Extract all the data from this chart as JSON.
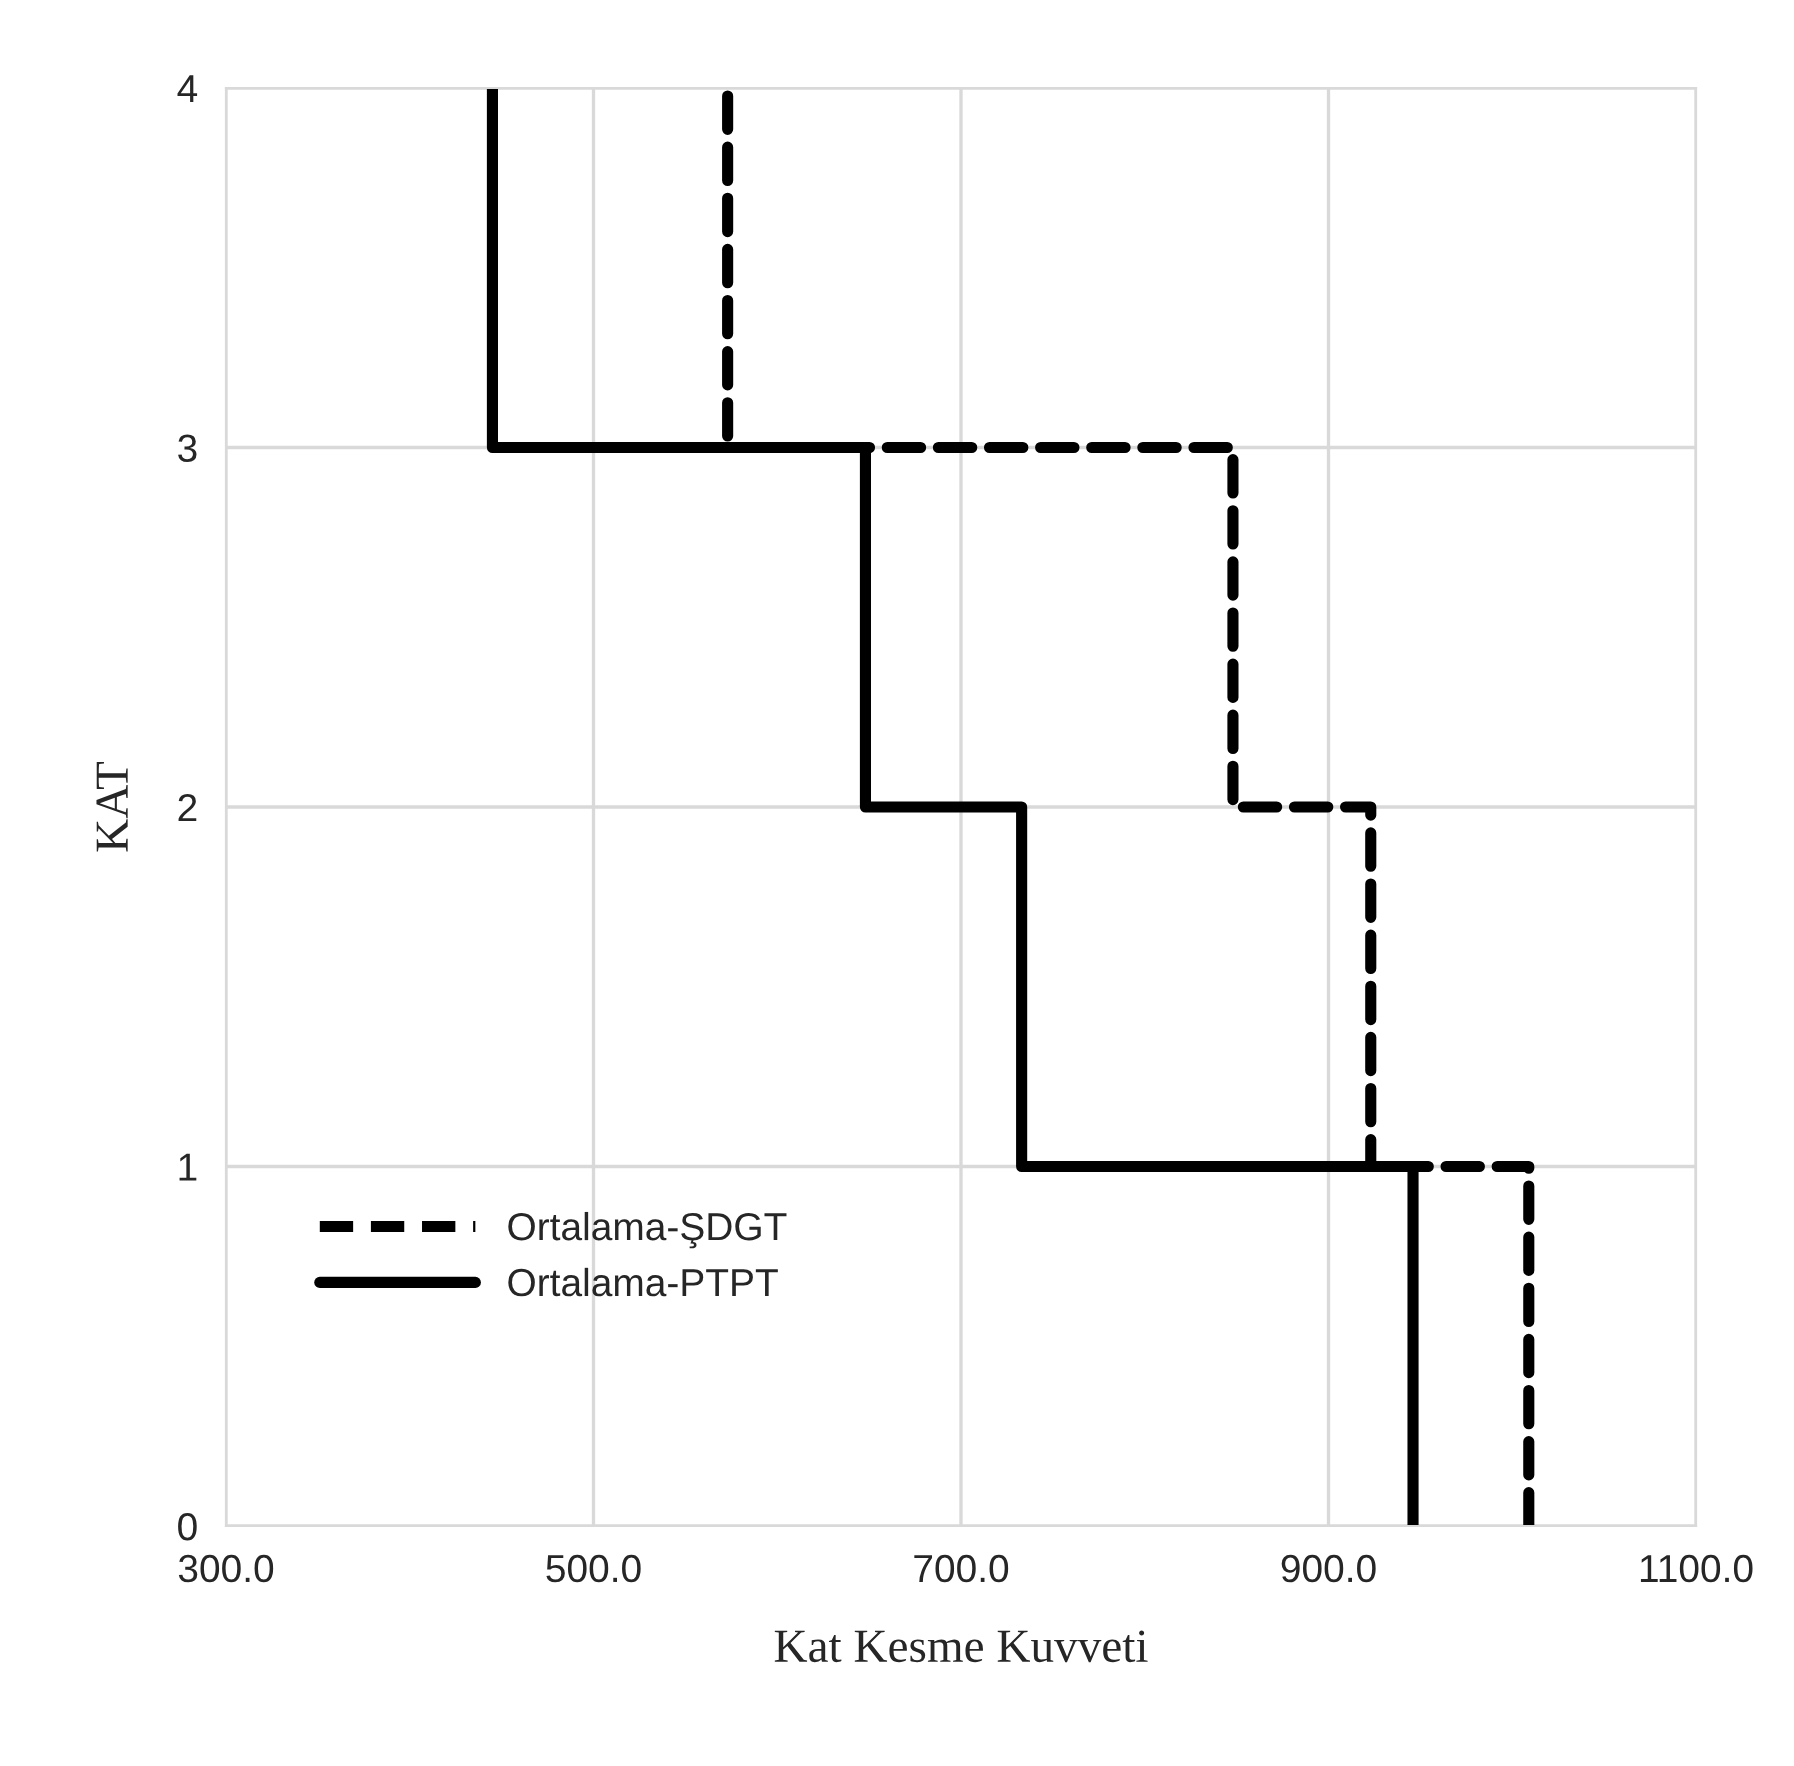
{
  "chart_data": {
    "type": "line",
    "xlabel": "Kat Kesme Kuvveti",
    "ylabel": "KAT",
    "series": [
      {
        "name": "Ortalama-ŞDGT",
        "color": "#000000",
        "line_style": "dashed",
        "x": [
          1009,
          1009,
          923,
          923,
          848,
          848,
          573,
          573
        ],
        "values": [
          0,
          1,
          1,
          2,
          2,
          3,
          3,
          4
        ]
      },
      {
        "name": "Ortalama-PTPT",
        "color": "#000000",
        "line_style": "solid",
        "x": [
          946,
          946,
          733,
          733,
          648,
          648,
          445,
          445
        ],
        "values": [
          0,
          1,
          1,
          2,
          2,
          3,
          3,
          4
        ]
      }
    ],
    "xlim": [
      300,
      1100
    ],
    "xticks": [
      {
        "value": 300,
        "label": "300.0"
      },
      {
        "value": 500,
        "label": "500.0"
      },
      {
        "value": 700,
        "label": "700.0"
      },
      {
        "value": 900,
        "label": "900.0"
      },
      {
        "value": 1100,
        "label": "1100.0"
      }
    ],
    "ylim": [
      0,
      4
    ],
    "yticks": [
      0,
      1,
      2,
      3,
      4
    ],
    "grid": true,
    "legend": "bottom left",
    "marker": "none"
  }
}
